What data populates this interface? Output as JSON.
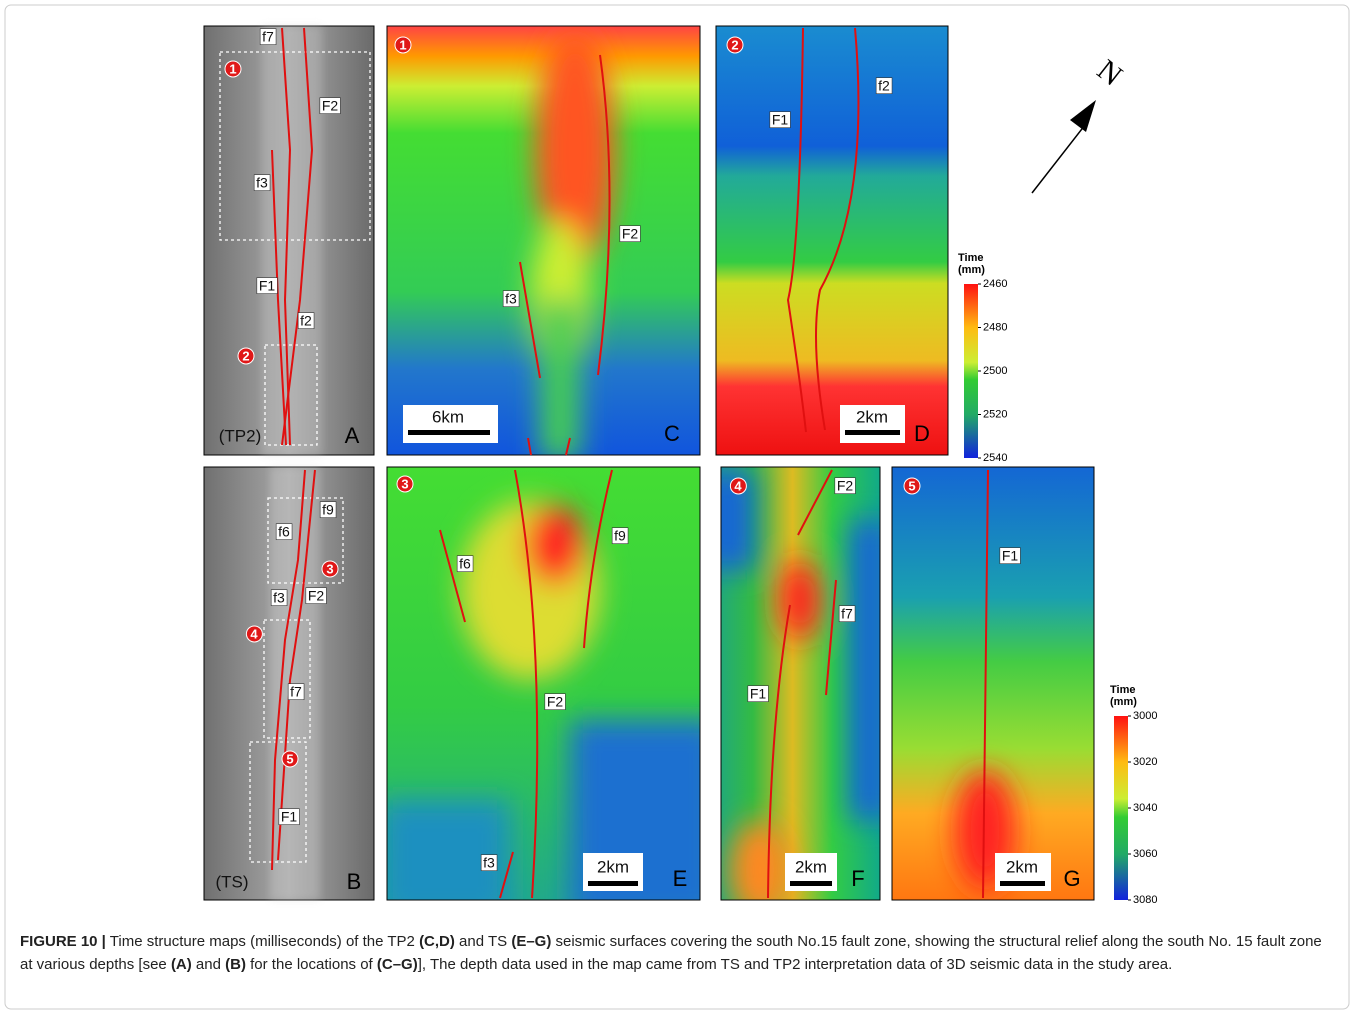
{
  "maps": [
    {
      "letter": "A",
      "tag": "(TP2)",
      "labels": [
        "f7",
        "F2",
        "f3",
        "F1",
        "f2"
      ],
      "markers": [
        "1",
        "2"
      ]
    },
    {
      "letter": "C",
      "marker": "1",
      "labels": [
        "F2",
        "f3"
      ],
      "scale": "6km"
    },
    {
      "letter": "D",
      "marker": "2",
      "labels": [
        "F1",
        "f2"
      ],
      "scale": "2km"
    },
    {
      "letter": "B",
      "tag": "(TS)",
      "labels": [
        "f9",
        "f6",
        "f3",
        "F2",
        "f7",
        "F1"
      ],
      "markers": [
        "3",
        "4",
        "5"
      ]
    },
    {
      "letter": "E",
      "marker": "3",
      "labels": [
        "f6",
        "f9",
        "F2",
        "f3"
      ],
      "scale": "2km"
    },
    {
      "letter": "F",
      "marker": "4",
      "labels": [
        "F2",
        "f7",
        "F1"
      ],
      "scale": "2km"
    },
    {
      "letter": "G",
      "marker": "5",
      "labels": [
        "F1"
      ],
      "scale": "2km"
    }
  ],
  "colorbars": [
    {
      "title": [
        "Time",
        "(mm)"
      ],
      "ticks": [
        2460,
        2480,
        2500,
        2520,
        2540
      ]
    },
    {
      "title": [
        "Time",
        "(mm)"
      ],
      "ticks": [
        3000,
        3020,
        3040,
        3060,
        3080
      ]
    }
  ],
  "north": "N",
  "caption": {
    "label": "FIGURE 10 |",
    "segments": [
      " Time structure maps (milliseconds) of the TP2 ",
      "(C,D)",
      " and TS ",
      "(E–G)",
      " seismic surfaces covering the south No.15 fault zone, showing the structural relief along the south No. 15 fault zone at various depths [see ",
      "(A)",
      " and ",
      "(B)",
      " for the locations of ",
      "(C–G)",
      "], The depth data used in the map came from TS and TP2 interpretation data of 3D seismic data in the study area."
    ]
  }
}
